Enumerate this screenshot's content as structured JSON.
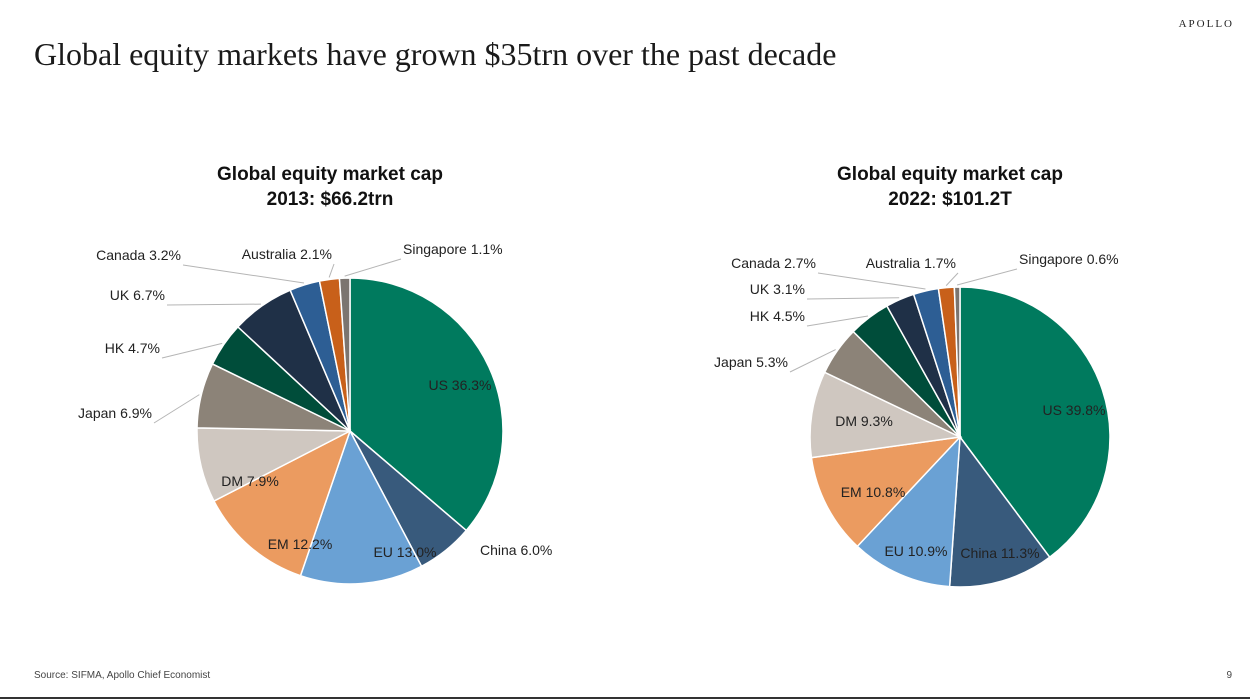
{
  "brand": "APOLLO",
  "headline": "Global equity markets have grown $35trn over the past decade",
  "footer": {
    "source": "Source: SIFMA, Apollo Chief Economist",
    "page": "9"
  },
  "chart_data": [
    {
      "type": "pie",
      "title": "Global equity market cap",
      "subtitle": "2013: $66.2trn",
      "slices": [
        {
          "label": "US 36.3%",
          "value": 36.3,
          "color": "#007a5e"
        },
        {
          "label": "China 6.0%",
          "value": 6.0,
          "color": "#385a7c"
        },
        {
          "label": "EU 13.0%",
          "value": 13.0,
          "color": "#6aa1d4"
        },
        {
          "label": "EM 12.2%",
          "value": 12.2,
          "color": "#eb9b60"
        },
        {
          "label": "DM 7.9%",
          "value": 7.9,
          "color": "#cfc7c0"
        },
        {
          "label": "Japan 6.9%",
          "value": 6.9,
          "color": "#8c8378"
        },
        {
          "label": "HK 4.7%",
          "value": 4.7,
          "color": "#004d3a"
        },
        {
          "label": "UK 6.7%",
          "value": 6.7,
          "color": "#1f3047"
        },
        {
          "label": "Canada 3.2%",
          "value": 3.2,
          "color": "#2d5e94"
        },
        {
          "label": "Australia 2.1%",
          "value": 2.1,
          "color": "#c8601a"
        },
        {
          "label": "Singapore 1.1%",
          "value": 1.1,
          "color": "#7b7570"
        }
      ]
    },
    {
      "type": "pie",
      "title": "Global equity market cap",
      "subtitle": "2022: $101.2T",
      "slices": [
        {
          "label": "US 39.8%",
          "value": 39.8,
          "color": "#007a5e"
        },
        {
          "label": "China 11.3%",
          "value": 11.3,
          "color": "#385a7c"
        },
        {
          "label": "EU 10.9%",
          "value": 10.9,
          "color": "#6aa1d4"
        },
        {
          "label": "EM 10.8%",
          "value": 10.8,
          "color": "#eb9b60"
        },
        {
          "label": "DM 9.3%",
          "value": 9.3,
          "color": "#cfc7c0"
        },
        {
          "label": "Japan 5.3%",
          "value": 5.3,
          "color": "#8c8378"
        },
        {
          "label": "HK 4.5%",
          "value": 4.5,
          "color": "#004d3a"
        },
        {
          "label": "UK 3.1%",
          "value": 3.1,
          "color": "#1f3047"
        },
        {
          "label": "Canada 2.7%",
          "value": 2.7,
          "color": "#2d5e94"
        },
        {
          "label": "Australia 1.7%",
          "value": 1.7,
          "color": "#c8601a"
        },
        {
          "label": "Singapore 0.6%",
          "value": 0.6,
          "color": "#7b7570"
        }
      ]
    }
  ]
}
